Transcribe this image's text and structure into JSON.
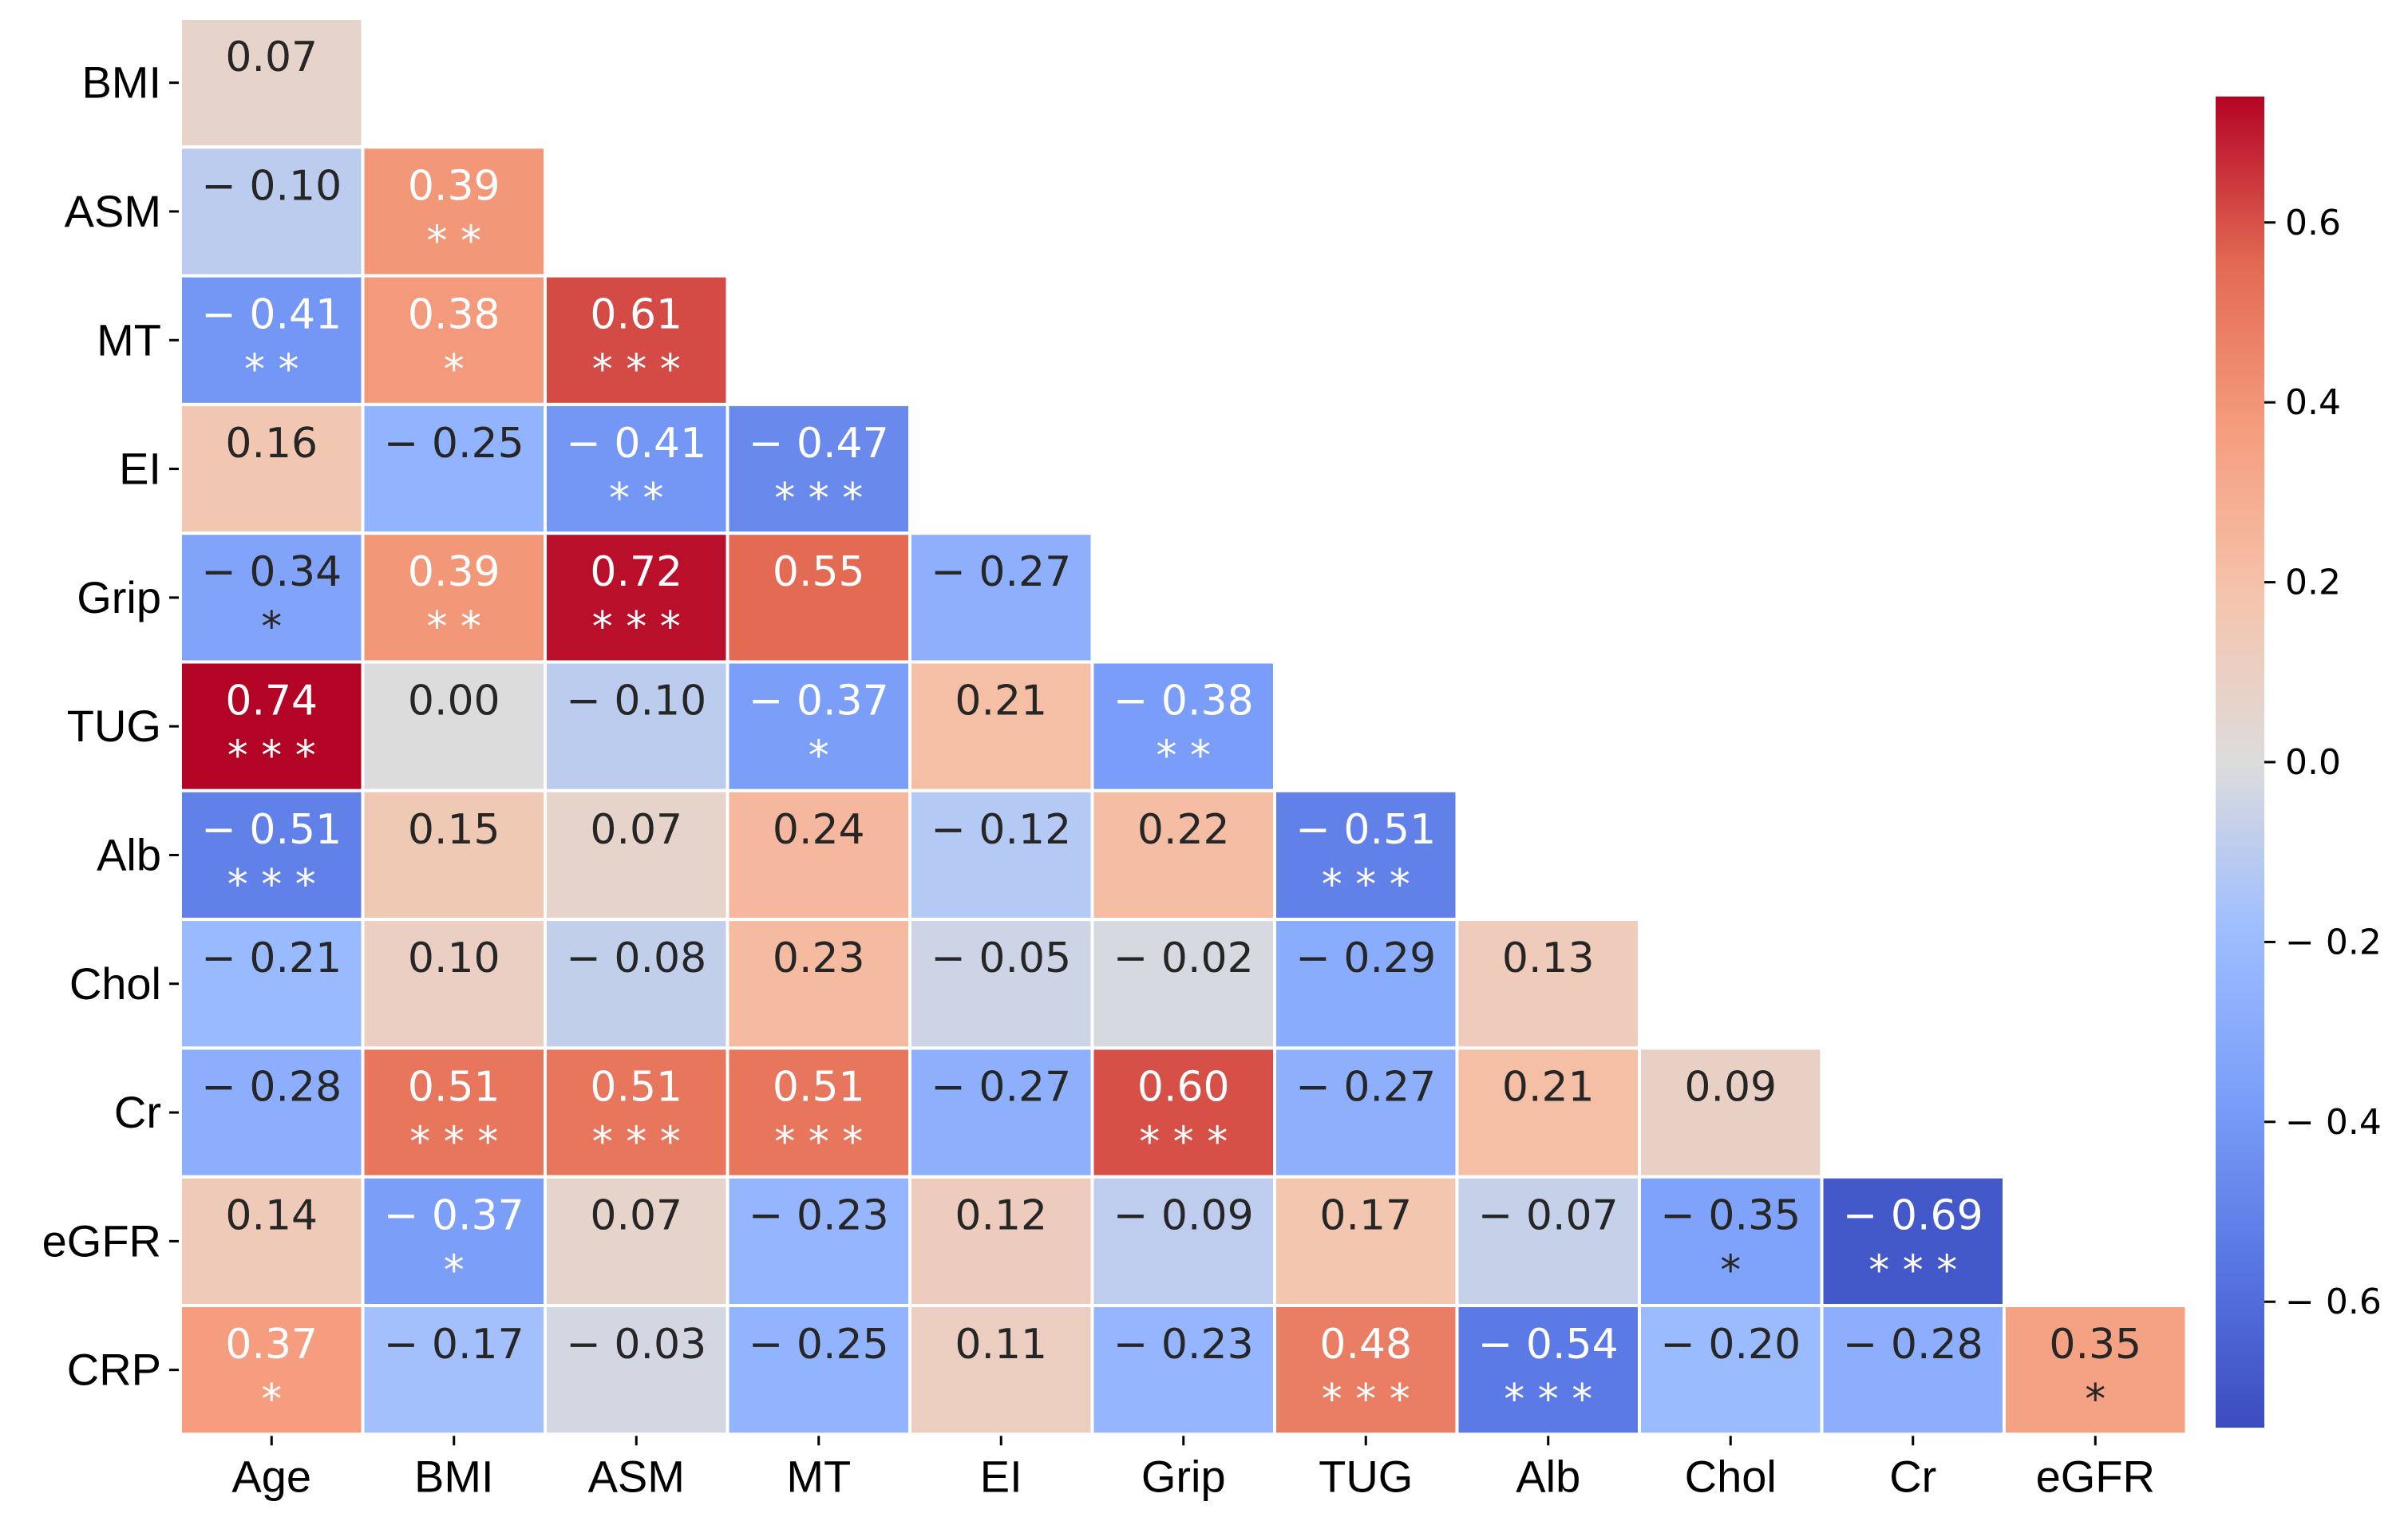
{
  "chart_data": {
    "type": "heatmap",
    "title": "",
    "rows": [
      "BMI",
      "ASM",
      "MT",
      "EI",
      "Grip",
      "TUG",
      "Alb",
      "Chol",
      "Cr",
      "eGFR",
      "CRP"
    ],
    "cols": [
      "Age",
      "BMI",
      "ASM",
      "MT",
      "EI",
      "Grip",
      "TUG",
      "Alb",
      "Chol",
      "Cr",
      "eGFR"
    ],
    "values": [
      [
        0.07
      ],
      [
        -0.1,
        0.39
      ],
      [
        -0.41,
        0.38,
        0.61
      ],
      [
        0.16,
        -0.25,
        -0.41,
        -0.47
      ],
      [
        -0.34,
        0.39,
        0.72,
        0.55,
        -0.27
      ],
      [
        0.74,
        0.0,
        -0.1,
        -0.37,
        0.21,
        -0.38
      ],
      [
        -0.51,
        0.15,
        0.07,
        0.24,
        -0.12,
        0.22,
        -0.51
      ],
      [
        -0.21,
        0.1,
        -0.08,
        0.23,
        -0.05,
        -0.02,
        -0.29,
        0.13
      ],
      [
        -0.28,
        0.51,
        0.51,
        0.51,
        -0.27,
        0.6,
        -0.27,
        0.21,
        0.09
      ],
      [
        0.14,
        -0.37,
        0.07,
        -0.23,
        0.12,
        -0.09,
        0.17,
        -0.07,
        -0.35,
        -0.69
      ],
      [
        0.37,
        -0.17,
        -0.03,
        -0.25,
        0.11,
        -0.23,
        0.48,
        -0.54,
        -0.2,
        -0.28,
        0.35
      ]
    ],
    "value_labels": [
      [
        "0.07"
      ],
      [
        "− 0.10",
        "0.39"
      ],
      [
        "− 0.41",
        "0.38",
        "0.61"
      ],
      [
        "0.16",
        "− 0.25",
        "− 0.41",
        "− 0.47"
      ],
      [
        "− 0.34",
        "0.39",
        "0.72",
        "0.55",
        "− 0.27"
      ],
      [
        "0.74",
        "0.00",
        "− 0.10",
        "− 0.37",
        "0.21",
        "− 0.38"
      ],
      [
        "− 0.51",
        "0.15",
        "0.07",
        "0.24",
        "− 0.12",
        "0.22",
        "− 0.51"
      ],
      [
        "− 0.21",
        "0.10",
        "− 0.08",
        "0.23",
        "− 0.05",
        "− 0.02",
        "− 0.29",
        "0.13"
      ],
      [
        "− 0.28",
        "0.51",
        "0.51",
        "0.51",
        "− 0.27",
        "0.60",
        "− 0.27",
        "0.21",
        "0.09"
      ],
      [
        "0.14",
        "− 0.37",
        "0.07",
        "− 0.23",
        "0.12",
        "− 0.09",
        "0.17",
        "− 0.07",
        "− 0.35",
        "− 0.69"
      ],
      [
        "0.37",
        "− 0.17",
        "− 0.03",
        "− 0.25",
        "0.11",
        "− 0.23",
        "0.48",
        "− 0.54",
        "− 0.20",
        "− 0.28",
        "0.35"
      ]
    ],
    "significance": [
      [
        ""
      ],
      [
        "",
        "* *"
      ],
      [
        "* *",
        "*",
        "* * *"
      ],
      [
        "",
        "",
        "* *",
        "* * *"
      ],
      [
        "*",
        "* *",
        "* * *",
        "",
        ""
      ],
      [
        "* * *",
        "",
        "",
        "*",
        "",
        "* *"
      ],
      [
        "* * *",
        "",
        "",
        "",
        "",
        "",
        "* * *"
      ],
      [
        "",
        "",
        "",
        "",
        "",
        "",
        "",
        ""
      ],
      [
        "",
        "* * *",
        "* * *",
        "* * *",
        "",
        "* * *",
        "",
        "",
        ""
      ],
      [
        "",
        "*",
        "",
        "",
        "",
        "",
        "",
        "",
        "*",
        "* * *"
      ],
      [
        "*",
        "",
        "",
        "",
        "",
        "",
        "* * *",
        "* * *",
        "",
        "",
        "*"
      ]
    ],
    "colorbar": {
      "colormap": "coolwarm",
      "vmin": -0.74,
      "vmax": 0.74,
      "ticks": [
        0.6,
        0.4,
        0.2,
        0.0,
        -0.2,
        -0.4,
        -0.6
      ],
      "tick_labels": [
        "0.6",
        "0.4",
        "0.2",
        "0.0",
        "− 0.2",
        "− 0.4",
        "− 0.6"
      ]
    }
  }
}
